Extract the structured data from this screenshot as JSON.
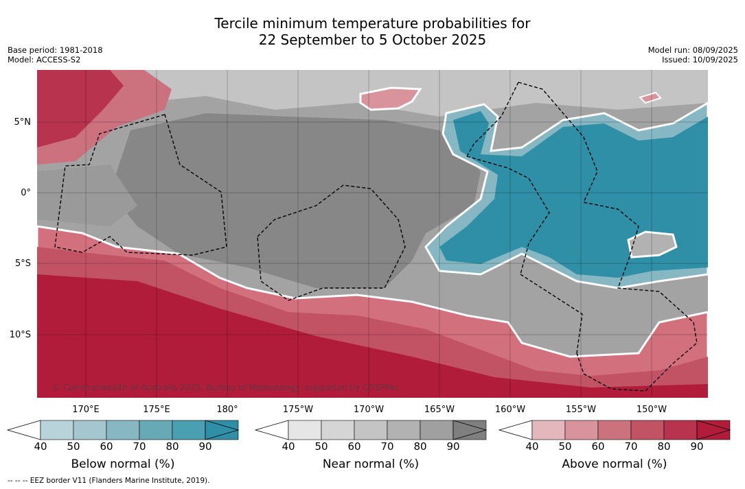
{
  "title": {
    "line1": "Tercile minimum temperature probabilities for",
    "line2": "22 September to 5 October 2025"
  },
  "meta_left": {
    "base_period": "Base period: 1981-2018",
    "model": "Model: ACCESS-S2"
  },
  "meta_right": {
    "model_run": "Model run: 08/09/2025",
    "issued": "Issued: 10/09/2025"
  },
  "map": {
    "lat_labels": [
      "5°N",
      "0°",
      "5°S",
      "10°S"
    ],
    "lon_labels": [
      "170°E",
      "175°E",
      "180°",
      "175°W",
      "170°W",
      "165°W",
      "160°W",
      "155°W",
      "150°W"
    ],
    "copyright": "© Commonwealth of Australia 2025, Bureau of Meteorology, supported by COSPPac",
    "colors": {
      "below": "#2e8fa6",
      "near": "#878787",
      "above": "#b51e3c",
      "near_light": "#c6c6c6",
      "above_light": "#d3707e"
    }
  },
  "colorbars": [
    {
      "label": "Below normal (%)",
      "ticks": [
        "40",
        "50",
        "60",
        "70",
        "80",
        "90"
      ],
      "colors": [
        "#b8d3da",
        "#a3c6cf",
        "#86b7c2",
        "#68a9b6",
        "#4a9fb0",
        "#2e8fa6"
      ]
    },
    {
      "label": "Near normal (%)",
      "ticks": [
        "40",
        "50",
        "60",
        "70",
        "80",
        "90"
      ],
      "colors": [
        "#e6e6e6",
        "#d5d5d5",
        "#c4c4c4",
        "#b2b2b2",
        "#a0a0a0",
        "#7f7f7f"
      ]
    },
    {
      "label": "Above normal (%)",
      "ticks": [
        "40",
        "50",
        "60",
        "70",
        "80",
        "90"
      ],
      "colors": [
        "#e4b7bd",
        "#d8939d",
        "#cc727f",
        "#c15365",
        "#b8344e",
        "#b01c3a"
      ]
    }
  ],
  "footnote": "-- -- -- EEZ border V11 (Flanders Marine Institute, 2019)."
}
